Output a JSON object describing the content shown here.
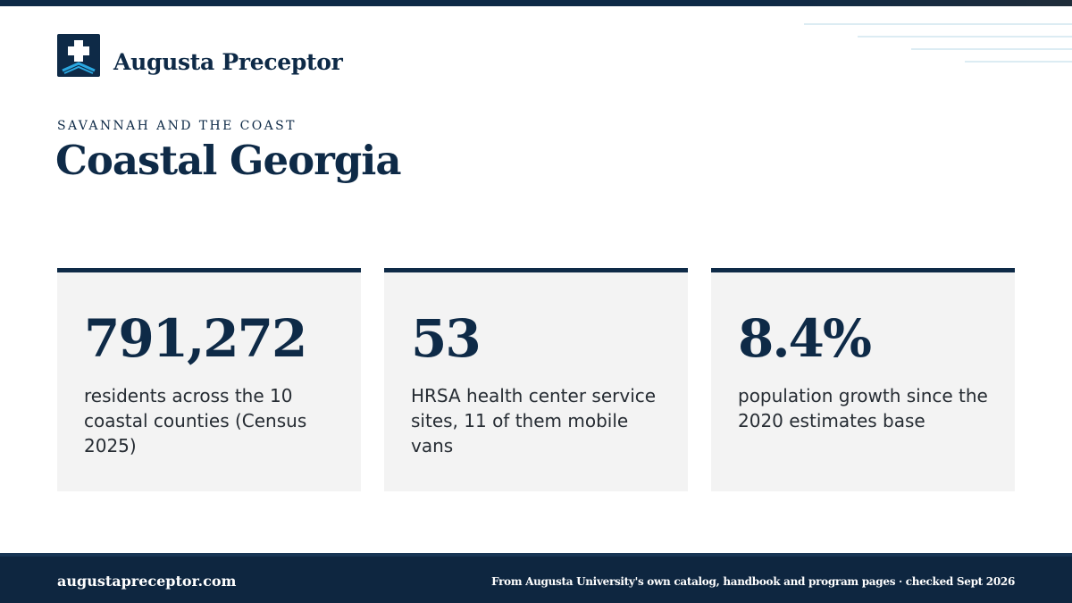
{
  "brand": {
    "name": "Augusta Preceptor",
    "logo_icon": "medical-cross-icon",
    "colors": {
      "navy": "#0e2a47",
      "accent_blue": "#2aa7e0",
      "card_bg": "#f3f3f3"
    }
  },
  "header": {
    "eyebrow": "SAVANNAH AND THE COAST",
    "title": "Coastal Georgia"
  },
  "stats": [
    {
      "value": "791,272",
      "description": "residents across the 10 coastal counties (Census 2025)"
    },
    {
      "value": "53",
      "description": "HRSA health center service sites, 11 of them mobile vans"
    },
    {
      "value": "8.4%",
      "description": "population growth since the 2020 estimates base"
    }
  ],
  "footer": {
    "url": "augustapreceptor.com",
    "note": "From Augusta University's own catalog, handbook and program pages · checked Sept 2026"
  }
}
